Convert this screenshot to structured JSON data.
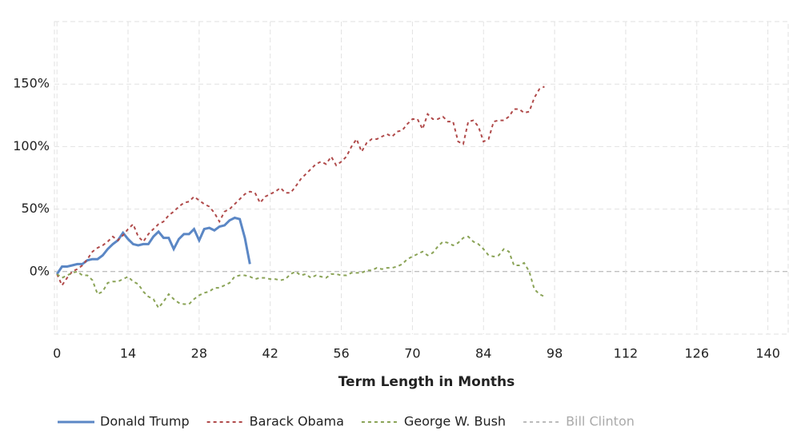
{
  "chart_data": {
    "type": "line",
    "x_label": "Term Length in Months",
    "xlim": [
      -0.5,
      144
    ],
    "ylim": [
      -50,
      200
    ],
    "xticks": [
      0,
      14,
      28,
      42,
      56,
      70,
      84,
      98,
      112,
      126,
      140
    ],
    "yticks": [
      {
        "value": 0,
        "label": "0%"
      },
      {
        "value": 50,
        "label": "50%"
      },
      {
        "value": 100,
        "label": "100%"
      },
      {
        "value": 150,
        "label": "150%"
      }
    ],
    "grid": true,
    "legend": "bottom",
    "x": [
      0,
      1,
      2,
      3,
      4,
      5,
      6,
      7,
      8,
      9,
      10,
      11,
      12,
      13,
      14,
      15,
      16,
      17,
      18,
      19,
      20,
      21,
      22,
      23,
      24,
      25,
      26,
      27,
      28,
      29,
      30,
      31,
      32,
      33,
      34,
      35,
      36,
      37,
      38,
      39,
      40,
      41,
      42,
      43,
      44,
      45,
      46,
      47,
      48,
      49,
      50,
      51,
      52,
      53,
      54,
      55,
      56,
      57,
      58,
      59,
      60,
      61,
      62,
      63,
      64,
      65,
      66,
      67,
      68,
      69,
      70,
      71,
      72,
      73,
      74,
      75,
      76,
      77,
      78,
      79,
      80,
      81,
      82,
      83,
      84,
      85,
      86,
      87,
      88,
      89,
      90,
      91,
      92,
      93,
      94,
      95,
      96
    ],
    "series": [
      {
        "name": "Donald Trump",
        "color": "#5b87c5",
        "style": "solid",
        "values": [
          -2,
          4,
          4,
          5,
          6,
          6,
          9,
          10,
          10,
          13,
          18,
          22,
          25,
          31,
          26,
          22,
          21,
          22,
          22,
          28,
          32,
          27,
          27,
          18,
          26,
          30,
          30,
          34,
          25,
          34,
          35,
          33,
          36,
          37,
          41,
          43,
          42,
          27,
          6,
          null,
          null,
          null,
          null,
          null,
          null,
          null,
          null,
          null,
          null,
          null,
          null,
          null,
          null,
          null,
          null,
          null,
          null,
          null,
          null,
          null,
          null,
          null,
          null,
          null,
          null,
          null,
          null,
          null,
          null,
          null,
          null,
          null,
          null,
          null,
          null,
          null,
          null,
          null,
          null,
          null,
          null,
          null,
          null,
          null,
          null,
          null,
          null,
          null,
          null,
          null,
          null,
          null,
          null,
          null,
          null,
          null,
          null
        ]
      },
      {
        "name": "Barack Obama",
        "color": "#b04a4a",
        "style": "dotted",
        "values": [
          -2,
          -11,
          -5,
          0,
          2,
          5,
          10,
          16,
          19,
          21,
          24,
          28,
          25,
          29,
          34,
          38,
          28,
          24,
          30,
          34,
          38,
          40,
          45,
          48,
          52,
          55,
          56,
          60,
          57,
          54,
          52,
          47,
          40,
          48,
          50,
          54,
          58,
          62,
          64,
          63,
          55,
          60,
          62,
          64,
          67,
          63,
          63,
          68,
          74,
          78,
          82,
          86,
          88,
          86,
          92,
          85,
          88,
          92,
          100,
          106,
          96,
          103,
          106,
          106,
          108,
          110,
          108,
          112,
          113,
          118,
          122,
          122,
          114,
          126,
          122,
          122,
          124,
          120,
          120,
          104,
          102,
          120,
          121,
          116,
          104,
          106,
          120,
          121,
          121,
          124,
          130,
          130,
          127,
          128,
          139,
          146,
          148
        ]
      },
      {
        "name": "George W. Bush",
        "color": "#8aa356",
        "style": "dotted",
        "values": [
          -2,
          -5,
          -3,
          -1,
          0,
          -3,
          -3,
          -7,
          -18,
          -16,
          -9,
          -8,
          -8,
          -6,
          -4,
          -8,
          -10,
          -16,
          -20,
          -22,
          -29,
          -24,
          -18,
          -22,
          -25,
          -26,
          -26,
          -22,
          -19,
          -17,
          -16,
          -13,
          -13,
          -11,
          -9,
          -4,
          -3,
          -3,
          -4,
          -6,
          -5,
          -5,
          -6,
          -6,
          -7,
          -6,
          -2,
          0,
          -3,
          -2,
          -5,
          -3,
          -4,
          -5,
          -2,
          -2,
          -3,
          -3,
          -1,
          -1,
          -1,
          1,
          1,
          3,
          2,
          3,
          3,
          4,
          6,
          10,
          12,
          14,
          16,
          13,
          15,
          20,
          24,
          23,
          21,
          23,
          27,
          28,
          24,
          22,
          18,
          13,
          12,
          13,
          18,
          16,
          5,
          5,
          7,
          0,
          -14,
          -18,
          -20
        ]
      },
      {
        "name": "Bill Clinton",
        "color": "#bbbbbb",
        "style": "dotted",
        "hidden": true,
        "values": [
          null,
          null,
          null,
          null,
          null,
          null,
          null,
          null,
          null,
          null,
          null,
          null,
          null,
          null,
          null,
          null,
          null,
          null,
          null,
          null,
          null,
          null,
          null,
          null,
          null,
          null,
          null,
          null,
          null,
          null,
          null,
          null,
          null,
          null,
          null,
          null,
          null,
          null,
          null,
          null,
          null,
          null,
          null,
          null,
          null,
          null,
          null,
          null,
          null,
          null,
          null,
          null,
          null,
          null,
          null,
          null,
          null,
          null,
          null,
          null,
          null,
          null,
          null,
          null,
          null,
          null,
          null,
          null,
          null,
          null,
          null,
          null,
          null,
          null,
          null,
          null,
          null,
          null,
          null,
          null,
          null,
          null,
          null,
          null,
          null,
          null,
          null,
          null,
          null,
          null,
          null,
          null,
          null,
          null,
          null,
          null,
          null
        ]
      }
    ]
  }
}
